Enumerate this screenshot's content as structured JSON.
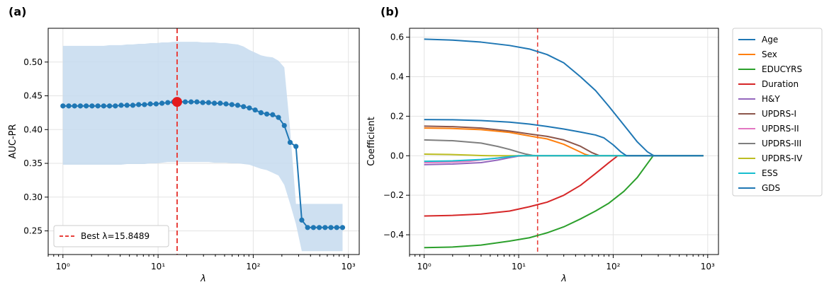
{
  "chart_data": [
    {
      "type": "line",
      "panel_label": "(a)",
      "xlabel": "λ",
      "ylabel": "AUC-PR",
      "xscale": "log",
      "xlim": [
        0.7,
        1300
      ],
      "ylim": [
        0.215,
        0.55
      ],
      "x_ticks": [
        1,
        10,
        100,
        1000
      ],
      "x_tick_labels": [
        "10⁰",
        "10¹",
        "10²",
        "10³"
      ],
      "y_ticks": [
        0.25,
        0.3,
        0.35,
        0.4,
        0.45,
        0.5
      ],
      "y_tick_labels": [
        "0.25",
        "0.30",
        "0.35",
        "0.40",
        "0.45",
        "0.50"
      ],
      "grid": true,
      "legend_position": "bottom-left",
      "legend_label": "Best λ=15.8489",
      "best_lambda": 15.8489,
      "best_value": 0.441,
      "colors": {
        "line": "#1f77b4",
        "band": "#c6dbee",
        "best": "#e41a1c",
        "vline": "#e8413c"
      },
      "series": [
        {
          "x": [
            1,
            1.1514,
            1.3257,
            1.5264,
            1.7575,
            2.0236,
            2.33,
            2.6827,
            3.0888,
            3.5565,
            4.0949,
            4.7149,
            5.4287,
            6.2506,
            7.1969,
            8.2864,
            9.541,
            10.985,
            12.649,
            14.563,
            16.768,
            19.307,
            22.23,
            25.595,
            29.471,
            33.932,
            39.069,
            44.984,
            51.795,
            59.636,
            68.665,
            79.06,
            91.03,
            104.81,
            120.68,
            138.95,
            159.99,
            184.21,
            212.1,
            244.21,
            281.18,
            323.75,
            372.76,
            429.19,
            494.17,
            568.99,
            655.13,
            754.31,
            868.51
          ],
          "values": [
            0.435,
            0.435,
            0.435,
            0.435,
            0.435,
            0.435,
            0.435,
            0.435,
            0.435,
            0.435,
            0.436,
            0.436,
            0.436,
            0.437,
            0.437,
            0.438,
            0.438,
            0.439,
            0.44,
            0.441,
            0.441,
            0.441,
            0.441,
            0.441,
            0.44,
            0.44,
            0.439,
            0.439,
            0.438,
            0.437,
            0.436,
            0.434,
            0.432,
            0.429,
            0.425,
            0.423,
            0.422,
            0.418,
            0.406,
            0.381,
            0.375,
            0.266,
            0.255,
            0.255,
            0.255,
            0.255,
            0.255,
            0.255,
            0.255
          ],
          "upper": [
            0.524,
            0.524,
            0.524,
            0.524,
            0.524,
            0.524,
            0.524,
            0.524,
            0.525,
            0.525,
            0.525,
            0.526,
            0.526,
            0.527,
            0.527,
            0.528,
            0.528,
            0.529,
            0.529,
            0.53,
            0.53,
            0.53,
            0.53,
            0.53,
            0.529,
            0.529,
            0.529,
            0.528,
            0.528,
            0.527,
            0.526,
            0.523,
            0.518,
            0.514,
            0.51,
            0.508,
            0.507,
            0.502,
            0.492,
            0.4,
            0.29,
            0.29,
            0.29,
            0.29,
            0.29,
            0.29,
            0.29,
            0.29,
            0.29
          ],
          "lower": [
            0.348,
            0.348,
            0.348,
            0.348,
            0.348,
            0.348,
            0.348,
            0.348,
            0.348,
            0.348,
            0.348,
            0.349,
            0.349,
            0.349,
            0.349,
            0.35,
            0.35,
            0.351,
            0.352,
            0.352,
            0.352,
            0.352,
            0.352,
            0.352,
            0.352,
            0.352,
            0.351,
            0.351,
            0.351,
            0.35,
            0.35,
            0.349,
            0.348,
            0.345,
            0.342,
            0.34,
            0.336,
            0.332,
            0.318,
            0.29,
            0.26,
            0.22,
            0.22,
            0.22,
            0.22,
            0.22,
            0.22,
            0.22,
            0.22
          ]
        }
      ]
    },
    {
      "type": "line",
      "panel_label": "(b)",
      "xlabel": "λ",
      "ylabel": "Coefficient",
      "xscale": "log",
      "xlim": [
        0.7,
        1300
      ],
      "ylim": [
        -0.5,
        0.645
      ],
      "x_ticks": [
        1,
        10,
        100,
        1000
      ],
      "x_tick_labels": [
        "10⁰",
        "10¹",
        "10²",
        "10³"
      ],
      "y_ticks": [
        -0.4,
        -0.2,
        0.0,
        0.2,
        0.4,
        0.6
      ],
      "y_tick_labels": [
        "−0.4",
        "−0.2",
        "0.0",
        "0.2",
        "0.4",
        "0.6"
      ],
      "grid": true,
      "legend_position": "outside-right",
      "best_lambda": 15.8489,
      "vline_color": "#e8413c",
      "series": [
        {
          "name": "Age",
          "color": "#1f77b4",
          "x": [
            1,
            2,
            4,
            8,
            13,
            20,
            30,
            45,
            65,
            90,
            130,
            180,
            230,
            265,
            282,
            300,
            500,
            900
          ],
          "values": [
            0.59,
            0.585,
            0.575,
            0.558,
            0.54,
            0.512,
            0.47,
            0.4,
            0.33,
            0.25,
            0.155,
            0.07,
            0.02,
            0.002,
            0,
            0,
            0,
            0
          ]
        },
        {
          "name": "Sex",
          "color": "#ff7f0e",
          "x": [
            1,
            2,
            4,
            8,
            13,
            20,
            30,
            40,
            50,
            57,
            65,
            900
          ],
          "values": [
            0.14,
            0.138,
            0.132,
            0.118,
            0.1,
            0.085,
            0.058,
            0.03,
            0.008,
            0,
            0,
            0
          ]
        },
        {
          "name": "EDUCYRS",
          "color": "#2ca02c",
          "x": [
            1,
            2,
            4,
            8,
            13,
            20,
            30,
            45,
            65,
            90,
            130,
            180,
            230,
            265,
            900
          ],
          "values": [
            -0.465,
            -0.462,
            -0.452,
            -0.432,
            -0.415,
            -0.39,
            -0.36,
            -0.32,
            -0.28,
            -0.24,
            -0.18,
            -0.11,
            -0.04,
            0,
            0
          ]
        },
        {
          "name": "Duration",
          "color": "#d62728",
          "x": [
            1,
            2,
            4,
            8,
            13,
            20,
            30,
            45,
            65,
            90,
            112,
            900
          ],
          "values": [
            -0.305,
            -0.302,
            -0.295,
            -0.28,
            -0.258,
            -0.235,
            -0.2,
            -0.15,
            -0.09,
            -0.035,
            0,
            0
          ]
        },
        {
          "name": "H&Y",
          "color": "#9467bd",
          "x": [
            1,
            2,
            4,
            6,
            8,
            10,
            12,
            900
          ],
          "values": [
            -0.045,
            -0.042,
            -0.035,
            -0.022,
            -0.01,
            -0.002,
            0,
            0
          ]
        },
        {
          "name": "UPDRS-I",
          "color": "#8c564b",
          "x": [
            1,
            2,
            4,
            8,
            13,
            20,
            30,
            45,
            60,
            72,
            900
          ],
          "values": [
            0.15,
            0.147,
            0.14,
            0.125,
            0.11,
            0.098,
            0.08,
            0.048,
            0.015,
            0,
            0
          ]
        },
        {
          "name": "UPDRS-II",
          "color": "#e377c2",
          "x": [
            1,
            2,
            3,
            5,
            7,
            9,
            11,
            900
          ],
          "values": [
            -0.035,
            -0.032,
            -0.028,
            -0.016,
            -0.007,
            -0.002,
            0,
            0
          ]
        },
        {
          "name": "UPDRS-III",
          "color": "#7f7f7f",
          "x": [
            1,
            2,
            4,
            6,
            8,
            10,
            12,
            14,
            16,
            900
          ],
          "values": [
            0.08,
            0.076,
            0.064,
            0.047,
            0.032,
            0.018,
            0.008,
            0.002,
            0,
            0
          ]
        },
        {
          "name": "UPDRS-IV",
          "color": "#bcbd22",
          "x": [
            1,
            2,
            3,
            4,
            5,
            900
          ],
          "values": [
            0.008,
            0.006,
            0.003,
            0.001,
            0,
            0
          ]
        },
        {
          "name": "ESS",
          "color": "#17becf",
          "x": [
            1,
            2,
            4,
            6,
            8,
            10,
            900
          ],
          "values": [
            -0.028,
            -0.026,
            -0.019,
            -0.012,
            -0.005,
            0,
            0
          ]
        },
        {
          "name": "GDS",
          "color": "#1f77b4",
          "x": [
            1,
            2,
            4,
            8,
            13,
            20,
            30,
            45,
            65,
            80,
            100,
            120,
            138,
            900
          ],
          "values": [
            0.183,
            0.182,
            0.178,
            0.17,
            0.16,
            0.148,
            0.135,
            0.12,
            0.105,
            0.09,
            0.055,
            0.02,
            0,
            0
          ]
        }
      ]
    }
  ]
}
